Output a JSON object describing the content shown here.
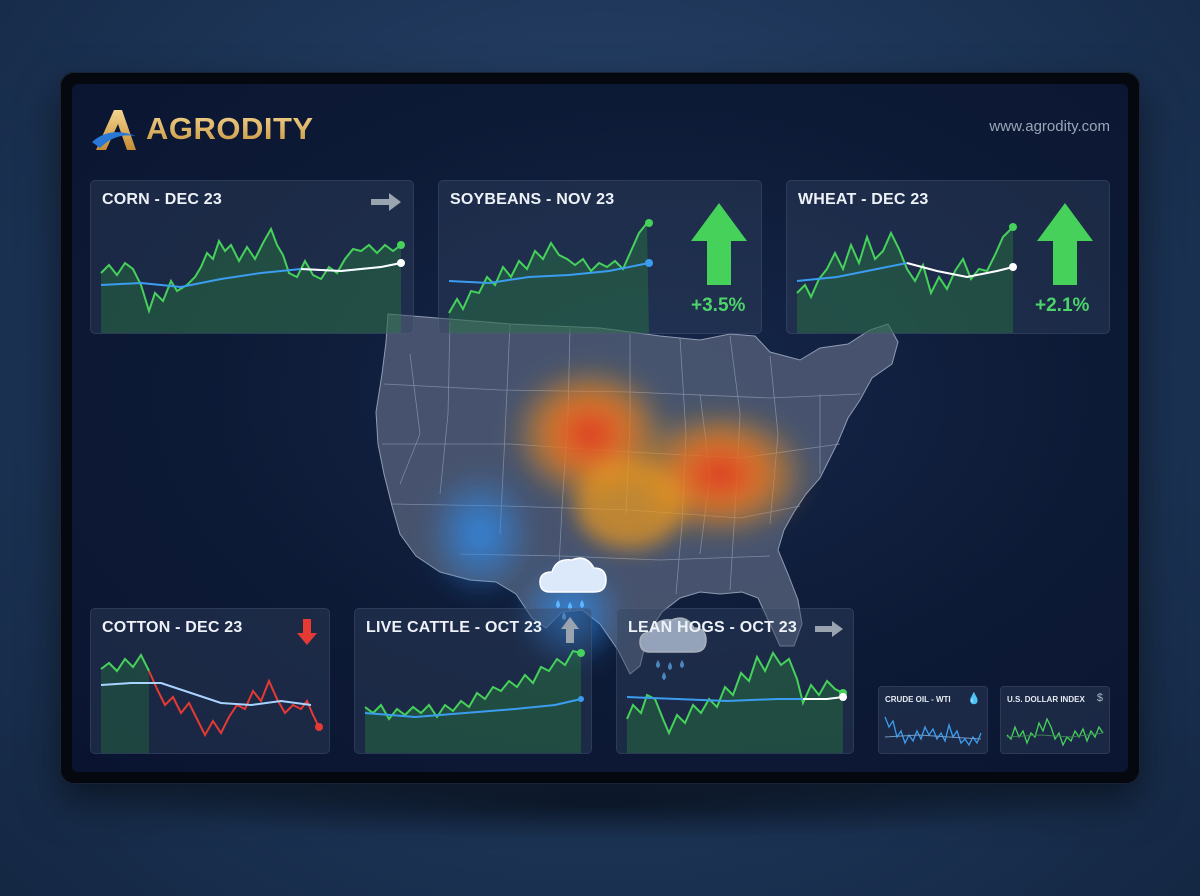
{
  "brand": {
    "name": "AGRODITY",
    "url": "www.agrodity.com",
    "gold": "#d9b063",
    "blue": "#2a78d6"
  },
  "colors": {
    "green": "#46d15b",
    "red": "#e43a33",
    "blue_line": "#3b9df0",
    "white_line": "#ffffff",
    "neutral_arrow": "#9aa3b0"
  },
  "panels": {
    "corn": {
      "title": "CORN - DEC 23",
      "trend_icon": "arrow-right-icon"
    },
    "soybeans": {
      "title": "SOYBEANS - NOV 23",
      "change": "+3.5%",
      "trend_icon": "arrow-up-icon"
    },
    "wheat": {
      "title": "WHEAT - DEC 23",
      "change": "+2.1%",
      "trend_icon": "arrow-up-icon"
    },
    "cotton": {
      "title": "COTTON - DEC 23",
      "trend_icon": "arrow-down-icon"
    },
    "cattle": {
      "title": "LIVE CATTLE - OCT 23",
      "trend_icon": "arrow-up-icon"
    },
    "hogs": {
      "title": "LEAN HOGS - OCT 23",
      "trend_icon": "arrow-right-icon"
    }
  },
  "mini_panels": {
    "crude": {
      "title": "CRUDE OIL - WTI",
      "icon": "oil-drop-icon",
      "glyph": "💧"
    },
    "dollar": {
      "title": "U.S. DOLLAR INDEX",
      "icon": "dollar-icon",
      "glyph": "$"
    }
  },
  "map": {
    "heat_zones": [
      "Northern Plains",
      "Corn Belt"
    ],
    "rain_zones": [
      "Colorado / New Mexico",
      "Texas / Oklahoma"
    ]
  }
}
